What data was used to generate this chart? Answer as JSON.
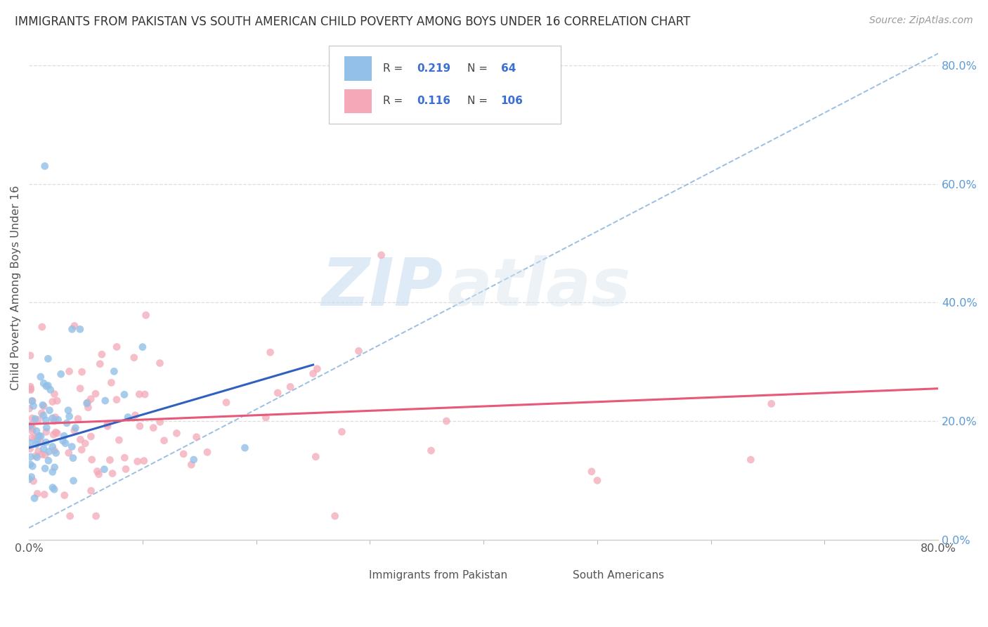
{
  "title": "IMMIGRANTS FROM PAKISTAN VS SOUTH AMERICAN CHILD POVERTY AMONG BOYS UNDER 16 CORRELATION CHART",
  "source": "Source: ZipAtlas.com",
  "ylabel": "Child Poverty Among Boys Under 16",
  "xlim": [
    0.0,
    0.8
  ],
  "ylim": [
    0.0,
    0.85
  ],
  "x_tick_positions": [
    0.0,
    0.8
  ],
  "x_tick_labels": [
    "0.0%",
    "80.0%"
  ],
  "y_ticks_right": [
    0.0,
    0.2,
    0.4,
    0.6,
    0.8
  ],
  "y_tick_labels_right": [
    "0.0%",
    "20.0%",
    "40.0%",
    "60.0%",
    "80.0%"
  ],
  "pakistan_color": "#92C0E8",
  "southam_color": "#F4A8B8",
  "pakistan_line_color": "#3060C0",
  "southam_line_color": "#E85878",
  "dash_line_color": "#90B8E0",
  "R_pakistan": 0.219,
  "N_pakistan": 64,
  "R_southam": 0.116,
  "N_southam": 106,
  "watermark_zip": "ZIP",
  "watermark_atlas": "atlas",
  "background_color": "#FFFFFF",
  "legend_label_1": "Immigrants from Pakistan",
  "legend_label_2": "South Americans",
  "tick_color": "#5B9BD5",
  "minor_grid_color": "#E8E8E8",
  "border_color": "#CCCCCC"
}
